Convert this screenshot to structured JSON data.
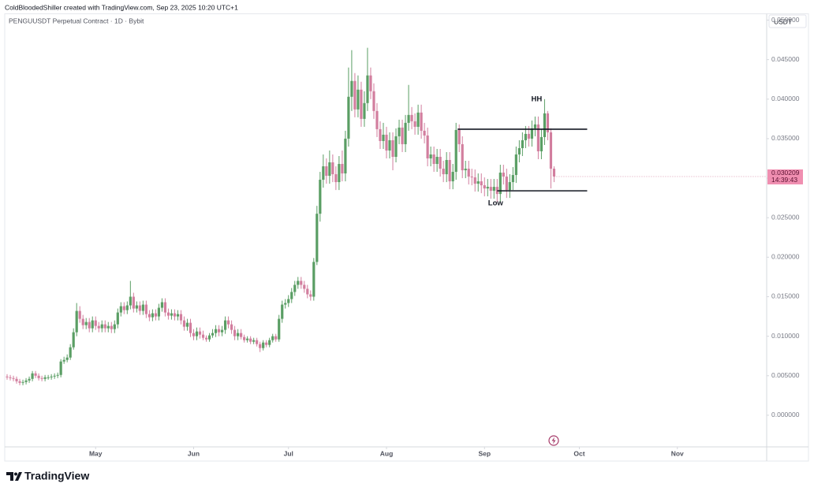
{
  "header": "ColdBloodedShiller created with TradingView.com, Sep 23, 2025 10:20 UTC+1",
  "logo": "TradingView",
  "chart_data": {
    "type": "candlestick",
    "subtitle": "PENGUUSDT Perpetual Contract · 1D · Bybit",
    "y_unit": "USDT",
    "up_color": "#5a9e64",
    "down_color": "#d27e9e",
    "grid": false,
    "xlim": [
      -0.75,
      240.25
    ],
    "xticks": [
      {
        "value": 28,
        "label": "May"
      },
      {
        "value": 59,
        "label": "Jun"
      },
      {
        "value": 89,
        "label": "Jul"
      },
      {
        "value": 120,
        "label": "Aug"
      },
      {
        "value": 151,
        "label": "Sep"
      },
      {
        "value": 181,
        "label": "Oct"
      },
      {
        "value": 212,
        "label": "Nov"
      }
    ],
    "ylim": [
      -0.004,
      0.0508
    ],
    "yticks": [
      {
        "value": 0,
        "label": "0.000000"
      },
      {
        "value": 0.005,
        "label": "0.005000"
      },
      {
        "value": 0.01,
        "label": "0.010000"
      },
      {
        "value": 0.015,
        "label": "0.015000"
      },
      {
        "value": 0.02,
        "label": "0.020000"
      },
      {
        "value": 0.025,
        "label": "0.025000"
      },
      {
        "value": 0.03,
        "label": "0.030000"
      },
      {
        "value": 0.035,
        "label": "0.035000"
      },
      {
        "value": 0.04,
        "label": "0.040000"
      },
      {
        "value": 0.045,
        "label": "0.045000"
      },
      {
        "value": 0.05,
        "label": "0.050000"
      }
    ],
    "open": [
      0.0049,
      0.0048,
      0.0047,
      0.0046,
      0.0043,
      0.0041,
      0.0042,
      0.0044,
      0.0046,
      0.0053,
      0.005,
      0.0047,
      0.0046,
      0.0048,
      0.0048,
      0.0049,
      0.005,
      0.0051,
      0.0068,
      0.007,
      0.0073,
      0.0086,
      0.0105,
      0.0132,
      0.0122,
      0.0114,
      0.0118,
      0.011,
      0.012,
      0.0113,
      0.011,
      0.0115,
      0.011,
      0.0113,
      0.0109,
      0.0115,
      0.013,
      0.0138,
      0.0133,
      0.0139,
      0.015,
      0.0135,
      0.0139,
      0.0132,
      0.014,
      0.0128,
      0.0124,
      0.0129,
      0.0125,
      0.0136,
      0.0143,
      0.013,
      0.0126,
      0.0129,
      0.0125,
      0.0128,
      0.012,
      0.0112,
      0.0117,
      0.0104,
      0.01,
      0.0106,
      0.0102,
      0.0098,
      0.0096,
      0.0101,
      0.0104,
      0.0109,
      0.0105,
      0.0108,
      0.012,
      0.0115,
      0.0108,
      0.01,
      0.0104,
      0.0099,
      0.0095,
      0.0097,
      0.0093,
      0.0095,
      0.009,
      0.0085,
      0.0092,
      0.0089,
      0.0095,
      0.01,
      0.0096,
      0.0122,
      0.014,
      0.0142,
      0.0147,
      0.0156,
      0.0165,
      0.017,
      0.0165,
      0.016,
      0.0153,
      0.015,
      0.0194,
      0.0255,
      0.0298,
      0.0315,
      0.0303,
      0.032,
      0.0305,
      0.0295,
      0.0318,
      0.0306,
      0.035,
      0.0403,
      0.0423,
      0.0387,
      0.0412,
      0.0375,
      0.0395,
      0.043,
      0.041,
      0.0385,
      0.0362,
      0.0347,
      0.0355,
      0.0335,
      0.0348,
      0.0327,
      0.0353,
      0.0364,
      0.0343,
      0.037,
      0.038,
      0.0372,
      0.0365,
      0.0383,
      0.036,
      0.0354,
      0.0325,
      0.033,
      0.0318,
      0.0327,
      0.0312,
      0.0305,
      0.0323,
      0.0296,
      0.0308,
      0.0361,
      0.0343,
      0.031,
      0.0312,
      0.0302,
      0.0301,
      0.0293,
      0.0296,
      0.0291,
      0.0287,
      0.0289,
      0.0284,
      0.0289,
      0.028,
      0.0307,
      0.0302,
      0.0285,
      0.0295,
      0.0304,
      0.033,
      0.0338,
      0.0348,
      0.0356,
      0.035,
      0.0363,
      0.0368,
      0.0334,
      0.0352,
      0.0382,
      0.0358,
      0.0312
    ],
    "high": [
      0.0052,
      0.0051,
      0.005,
      0.0049,
      0.0046,
      0.0045,
      0.0047,
      0.0049,
      0.0056,
      0.0056,
      0.0053,
      0.005,
      0.0051,
      0.0051,
      0.0052,
      0.0053,
      0.0054,
      0.0071,
      0.0074,
      0.0077,
      0.009,
      0.011,
      0.0142,
      0.0138,
      0.0127,
      0.0123,
      0.0123,
      0.0125,
      0.0125,
      0.0118,
      0.012,
      0.012,
      0.0118,
      0.0118,
      0.012,
      0.0135,
      0.0143,
      0.0143,
      0.0144,
      0.017,
      0.0155,
      0.0144,
      0.0144,
      0.0145,
      0.0145,
      0.0133,
      0.0134,
      0.0134,
      0.0141,
      0.0148,
      0.0148,
      0.0135,
      0.0134,
      0.0134,
      0.0133,
      0.0133,
      0.0125,
      0.0122,
      0.0122,
      0.0109,
      0.0111,
      0.0111,
      0.0107,
      0.0101,
      0.0104,
      0.0109,
      0.0114,
      0.0114,
      0.0113,
      0.0125,
      0.0125,
      0.012,
      0.0113,
      0.0109,
      0.0109,
      0.0102,
      0.01,
      0.01,
      0.0098,
      0.0098,
      0.0093,
      0.0095,
      0.0095,
      0.0098,
      0.0103,
      0.0103,
      0.0127,
      0.0145,
      0.0147,
      0.0152,
      0.0161,
      0.017,
      0.0175,
      0.0175,
      0.017,
      0.0165,
      0.0158,
      0.0199,
      0.0265,
      0.0308,
      0.033,
      0.0325,
      0.0335,
      0.033,
      0.0315,
      0.0328,
      0.0335,
      0.036,
      0.044,
      0.0462,
      0.0433,
      0.043,
      0.0422,
      0.041,
      0.0465,
      0.044,
      0.042,
      0.0395,
      0.0372,
      0.037,
      0.0365,
      0.0358,
      0.0358,
      0.0363,
      0.0374,
      0.0374,
      0.038,
      0.0418,
      0.039,
      0.0382,
      0.0393,
      0.0393,
      0.037,
      0.0364,
      0.034,
      0.034,
      0.0337,
      0.0337,
      0.0322,
      0.0333,
      0.0333,
      0.0318,
      0.037,
      0.0368,
      0.0353,
      0.0322,
      0.0322,
      0.0312,
      0.0311,
      0.0306,
      0.0306,
      0.0301,
      0.0299,
      0.0299,
      0.0299,
      0.0299,
      0.0317,
      0.0317,
      0.0312,
      0.0305,
      0.0314,
      0.034,
      0.0348,
      0.0358,
      0.0366,
      0.0366,
      0.0373,
      0.0378,
      0.0378,
      0.0362,
      0.04,
      0.0385,
      0.0363,
      0.0315
    ],
    "low": [
      0.0045,
      0.0044,
      0.0043,
      0.004,
      0.0038,
      0.0038,
      0.0039,
      0.0041,
      0.0043,
      0.0047,
      0.0044,
      0.0043,
      0.0043,
      0.0045,
      0.0045,
      0.0046,
      0.0047,
      0.0048,
      0.0065,
      0.0067,
      0.007,
      0.0083,
      0.01,
      0.0117,
      0.0109,
      0.0109,
      0.0105,
      0.0105,
      0.0108,
      0.0105,
      0.0105,
      0.0105,
      0.0105,
      0.0104,
      0.0104,
      0.011,
      0.0125,
      0.0128,
      0.0128,
      0.0134,
      0.013,
      0.013,
      0.0127,
      0.0127,
      0.0123,
      0.0119,
      0.0119,
      0.012,
      0.012,
      0.0131,
      0.0125,
      0.0121,
      0.0121,
      0.012,
      0.012,
      0.0115,
      0.0107,
      0.0107,
      0.0099,
      0.0095,
      0.0095,
      0.0097,
      0.0095,
      0.0093,
      0.0093,
      0.0098,
      0.0099,
      0.01,
      0.01,
      0.0103,
      0.011,
      0.0103,
      0.0095,
      0.0095,
      0.0096,
      0.0092,
      0.0092,
      0.009,
      0.009,
      0.0087,
      0.008,
      0.0082,
      0.0086,
      0.0086,
      0.0092,
      0.0093,
      0.0093,
      0.0117,
      0.0135,
      0.0137,
      0.0142,
      0.0151,
      0.016,
      0.016,
      0.0155,
      0.0148,
      0.0145,
      0.0145,
      0.019,
      0.0245,
      0.0288,
      0.0293,
      0.0293,
      0.0295,
      0.0285,
      0.0285,
      0.0296,
      0.0296,
      0.034,
      0.0385,
      0.0377,
      0.0377,
      0.0365,
      0.0365,
      0.0385,
      0.04,
      0.0375,
      0.0352,
      0.0337,
      0.0337,
      0.0325,
      0.0325,
      0.031,
      0.032,
      0.0343,
      0.0333,
      0.0333,
      0.036,
      0.0362,
      0.0355,
      0.0355,
      0.035,
      0.0344,
      0.0315,
      0.0315,
      0.0308,
      0.0308,
      0.0302,
      0.0295,
      0.0295,
      0.0286,
      0.0286,
      0.0298,
      0.0333,
      0.03,
      0.03,
      0.0292,
      0.0291,
      0.0283,
      0.0283,
      0.0281,
      0.0277,
      0.0277,
      0.0274,
      0.0274,
      0.027,
      0.027,
      0.0292,
      0.0275,
      0.0275,
      0.0285,
      0.0294,
      0.032,
      0.0328,
      0.0338,
      0.034,
      0.034,
      0.0353,
      0.0324,
      0.0324,
      0.0342,
      0.0348,
      0.0287,
      0.0295
    ],
    "close": [
      0.0048,
      0.0047,
      0.0046,
      0.0043,
      0.0041,
      0.0042,
      0.0044,
      0.0046,
      0.0053,
      0.005,
      0.0047,
      0.0046,
      0.0048,
      0.0048,
      0.0049,
      0.005,
      0.0051,
      0.0068,
      0.007,
      0.0073,
      0.0086,
      0.0105,
      0.0132,
      0.0122,
      0.0114,
      0.0118,
      0.011,
      0.012,
      0.0113,
      0.011,
      0.0115,
      0.011,
      0.0113,
      0.0109,
      0.0115,
      0.013,
      0.0138,
      0.0133,
      0.0139,
      0.015,
      0.0135,
      0.0139,
      0.0132,
      0.014,
      0.0128,
      0.0124,
      0.0129,
      0.0125,
      0.0136,
      0.0143,
      0.013,
      0.0126,
      0.0129,
      0.0125,
      0.0128,
      0.012,
      0.0112,
      0.0117,
      0.0104,
      0.01,
      0.0106,
      0.0102,
      0.0098,
      0.0096,
      0.0101,
      0.0104,
      0.0109,
      0.0105,
      0.0108,
      0.012,
      0.0115,
      0.0108,
      0.01,
      0.0104,
      0.0099,
      0.0095,
      0.0097,
      0.0093,
      0.0095,
      0.009,
      0.0085,
      0.0092,
      0.0089,
      0.0095,
      0.01,
      0.0096,
      0.0122,
      0.014,
      0.0142,
      0.0147,
      0.0156,
      0.0165,
      0.017,
      0.0165,
      0.016,
      0.0153,
      0.015,
      0.0194,
      0.0255,
      0.0298,
      0.0315,
      0.0303,
      0.032,
      0.0305,
      0.0295,
      0.0318,
      0.0306,
      0.035,
      0.0403,
      0.0423,
      0.0387,
      0.0412,
      0.0375,
      0.0395,
      0.043,
      0.041,
      0.0385,
      0.0362,
      0.0347,
      0.0355,
      0.0335,
      0.0348,
      0.0327,
      0.0353,
      0.0364,
      0.0343,
      0.037,
      0.038,
      0.0372,
      0.0365,
      0.0383,
      0.036,
      0.0354,
      0.0325,
      0.033,
      0.0318,
      0.0327,
      0.0312,
      0.0305,
      0.0323,
      0.0296,
      0.0308,
      0.0361,
      0.0343,
      0.031,
      0.0312,
      0.0302,
      0.0301,
      0.0293,
      0.0296,
      0.0291,
      0.0287,
      0.0289,
      0.0284,
      0.0289,
      0.028,
      0.0307,
      0.0302,
      0.0285,
      0.0295,
      0.0304,
      0.033,
      0.0338,
      0.0348,
      0.0356,
      0.035,
      0.0363,
      0.0368,
      0.0334,
      0.0352,
      0.0382,
      0.0358,
      0.0312,
      0.030209
    ],
    "countdown": "14:39:43",
    "hlines": [
      0.0362,
      0.0284
    ],
    "annotations": [
      {
        "text": "HH"
      },
      {
        "text": "Low"
      }
    ]
  }
}
